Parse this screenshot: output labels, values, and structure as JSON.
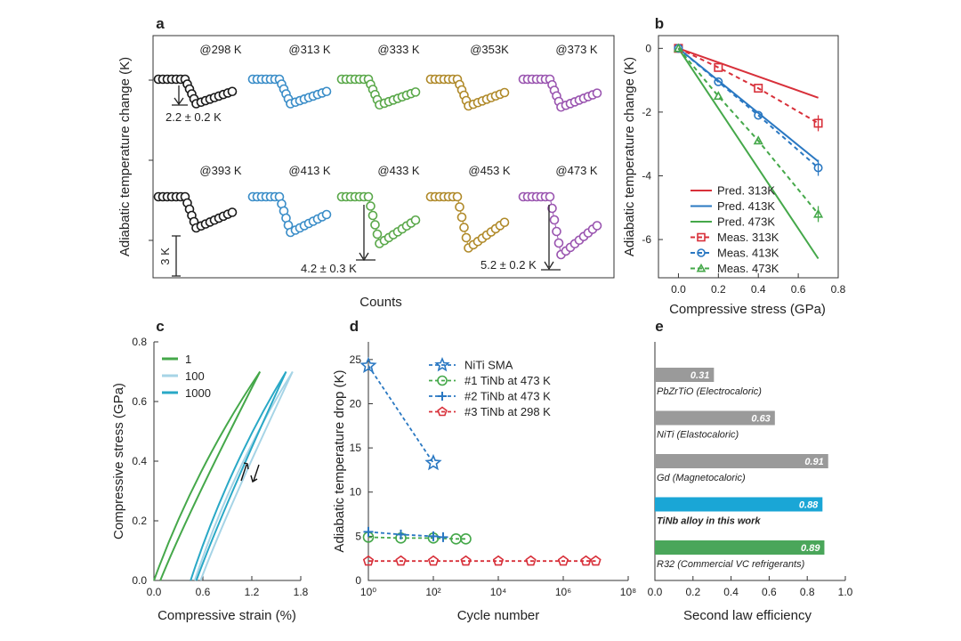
{
  "panels": {
    "a": {
      "label": "a",
      "ylabel": "Adiabatic temperature change (K)",
      "xlabel": "Counts",
      "headers_top": [
        "@298 K",
        "@313 K",
        "@333 K",
        "@353K",
        "@373 K"
      ],
      "headers_bottom": [
        "@393 K",
        "@413 K",
        "@433 K",
        "@453 K",
        "@473 K"
      ],
      "colors": [
        "#1a1a1a",
        "#3a8dc8",
        "#5aa84a",
        "#b08a2a",
        "#9a55b0"
      ],
      "drops_top": [
        2.2,
        2.2,
        2.3,
        2.4,
        2.5
      ],
      "drops_bottom": [
        2.8,
        3.2,
        4.2,
        4.6,
        5.2
      ],
      "annotations": {
        "top_left": "2.2 ± 0.2 K",
        "bottom_mid": "4.2 ± 0.3 K",
        "bottom_right": "5.2 ± 0.2 K",
        "scale": "3 K"
      }
    },
    "b": {
      "label": "b",
      "chart_data": {
        "type": "line",
        "xlabel": "Compressive stress (GPa)",
        "ylabel": "Adiabatic temperature change (K)",
        "xlim": [
          -0.1,
          0.8
        ],
        "ylim": [
          -7.2,
          0.4
        ],
        "xticks": [
          0.0,
          0.2,
          0.4,
          0.6,
          0.8
        ],
        "yticks": [
          0,
          -2,
          -4,
          -6
        ],
        "series": [
          {
            "name": "Pred. 313K",
            "style": "solid",
            "color": "#d8303a",
            "x": [
              0,
              0.7
            ],
            "y": [
              0,
              -1.55
            ]
          },
          {
            "name": "Pred. 413K",
            "style": "solid",
            "color": "#2a78c2",
            "x": [
              0,
              0.7
            ],
            "y": [
              0,
              -3.55
            ]
          },
          {
            "name": "Pred. 473K",
            "style": "solid",
            "color": "#45a84a",
            "x": [
              0,
              0.7
            ],
            "y": [
              0,
              -6.6
            ]
          },
          {
            "name": "Meas. 313K",
            "style": "dashed",
            "marker": "square",
            "color": "#d8303a",
            "x": [
              0,
              0.2,
              0.4,
              0.7
            ],
            "y": [
              0,
              -0.6,
              -1.25,
              -2.35
            ]
          },
          {
            "name": "Meas. 413K",
            "style": "dashed",
            "marker": "circle",
            "color": "#2a78c2",
            "x": [
              0,
              0.2,
              0.4,
              0.7
            ],
            "y": [
              0,
              -1.05,
              -2.1,
              -3.75
            ]
          },
          {
            "name": "Meas. 473K",
            "style": "dashed",
            "marker": "triangle",
            "color": "#45a84a",
            "x": [
              0,
              0.2,
              0.4,
              0.7
            ],
            "y": [
              0,
              -1.5,
              -2.9,
              -5.2
            ]
          }
        ]
      }
    },
    "c": {
      "label": "c",
      "chart_data": {
        "type": "line",
        "xlabel": "Compressive strain (%)",
        "ylabel": "Compressive stress (GPa)",
        "xlim": [
          0.0,
          1.8
        ],
        "ylim": [
          0.0,
          0.8
        ],
        "xticks": [
          0.0,
          0.6,
          1.2,
          1.8
        ],
        "yticks": [
          0.0,
          0.2,
          0.4,
          0.6,
          0.8
        ],
        "series": [
          {
            "name": "1",
            "color": "#45a84a",
            "x_start": 0.0,
            "x_end": 1.3,
            "y_end": 0.7
          },
          {
            "name": "100",
            "color": "#a6d4e6",
            "x_start": 0.5,
            "x_end": 1.7,
            "y_end": 0.7
          },
          {
            "name": "1000",
            "color": "#29a8c6",
            "x_start": 0.45,
            "x_end": 1.62,
            "y_end": 0.7
          }
        ]
      }
    },
    "d": {
      "label": "d",
      "chart_data": {
        "type": "scatter",
        "xlabel": "Cycle number",
        "ylabel": "Adiabatic temperature drop (K)",
        "xscale": "log",
        "xlim": [
          1,
          100000000
        ],
        "ylim": [
          0,
          27
        ],
        "xticks": [
          "10⁰",
          "10²",
          "10⁴",
          "10⁶",
          "10⁸"
        ],
        "yticks": [
          0,
          5,
          10,
          15,
          20,
          25
        ],
        "series": [
          {
            "name": "NiTi SMA",
            "marker": "star",
            "color": "#2a78c2",
            "x": [
              1,
              100
            ],
            "y": [
              24.3,
              13.3
            ]
          },
          {
            "name": "#1 TiNb at 473 K",
            "marker": "circle",
            "color": "#45a84a",
            "x": [
              1,
              10,
              100,
              500,
              1000
            ],
            "y": [
              4.9,
              4.8,
              4.8,
              4.7,
              4.7
            ]
          },
          {
            "name": "#2 TiNb at 473 K",
            "marker": "plus",
            "color": "#2a78c2",
            "x": [
              1,
              10,
              100,
              200
            ],
            "y": [
              5.5,
              5.2,
              5.0,
              4.9
            ]
          },
          {
            "name": "#3 TiNb at 298 K",
            "marker": "pentagon",
            "color": "#d8303a",
            "x": [
              1,
              10,
              100,
              1000,
              10000,
              100000,
              1000000,
              5000000,
              10000000
            ],
            "y": [
              2.2,
              2.2,
              2.2,
              2.2,
              2.2,
              2.2,
              2.2,
              2.2,
              2.2
            ]
          }
        ]
      }
    },
    "e": {
      "label": "e",
      "chart_data": {
        "type": "bar",
        "orientation": "horizontal",
        "xlabel": "Second law efficiency",
        "xlim": [
          0.0,
          1.0
        ],
        "xticks": [
          0.0,
          0.2,
          0.4,
          0.6,
          0.8,
          1.0
        ],
        "categories": [
          "PbZrTiO (Electrocaloric)",
          "NiTi (Elastocaloric)",
          "Gd (Magnetocaloric)",
          "TiNb alloy in this work",
          "R32 (Commercial VC refrigerants)"
        ],
        "values": [
          0.31,
          0.63,
          0.91,
          0.88,
          0.89
        ],
        "value_labels": [
          "0.31",
          "0.63",
          "0.91",
          "0.88",
          "0.89"
        ],
        "colors": [
          "#9a9a9a",
          "#9a9a9a",
          "#9a9a9a",
          "#1aa6d6",
          "#4aa65a"
        ]
      }
    }
  }
}
